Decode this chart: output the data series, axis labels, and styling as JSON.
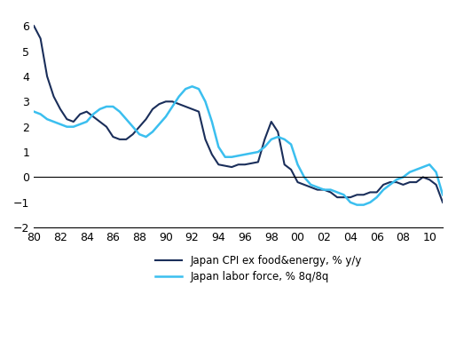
{
  "title": "",
  "xlabel": "",
  "ylabel": "",
  "xlim": [
    1980,
    2011
  ],
  "ylim": [
    -2,
    6.5
  ],
  "yticks": [
    -2,
    -1,
    0,
    1,
    2,
    3,
    4,
    5,
    6
  ],
  "xtick_labels": [
    "80",
    "82",
    "84",
    "86",
    "88",
    "90",
    "92",
    "94",
    "96",
    "98",
    "00",
    "02",
    "04",
    "06",
    "08",
    "10"
  ],
  "cpi_color": "#1a2e5a",
  "labor_color": "#3bbfef",
  "legend_cpi": "Japan CPI ex food&energy, % y/y",
  "legend_labor": "Japan labor force, % 8q/8q",
  "background_color": "#ffffff",
  "cpi_x": [
    1980,
    1980.5,
    1981,
    1981.5,
    1982,
    1982.5,
    1983,
    1983.5,
    1984,
    1984.5,
    1985,
    1985.5,
    1986,
    1986.5,
    1987,
    1987.5,
    1988,
    1988.5,
    1989,
    1989.5,
    1990,
    1990.5,
    1991,
    1991.5,
    1992,
    1992.5,
    1993,
    1993.5,
    1994,
    1994.5,
    1995,
    1995.5,
    1996,
    1996.5,
    1997,
    1997.5,
    1998,
    1998.5,
    1999,
    1999.5,
    2000,
    2000.5,
    2001,
    2001.5,
    2002,
    2002.5,
    2003,
    2003.5,
    2004,
    2004.5,
    2005,
    2005.5,
    2006,
    2006.5,
    2007,
    2007.5,
    2008,
    2008.5,
    2009,
    2009.5,
    2010,
    2010.5,
    2011
  ],
  "cpi_y": [
    6.0,
    5.5,
    4.0,
    3.2,
    2.7,
    2.3,
    2.2,
    2.5,
    2.6,
    2.4,
    2.2,
    2.0,
    1.6,
    1.5,
    1.5,
    1.7,
    2.0,
    2.3,
    2.7,
    2.9,
    3.0,
    3.0,
    2.9,
    2.8,
    2.7,
    2.6,
    1.5,
    0.9,
    0.5,
    0.45,
    0.4,
    0.5,
    0.5,
    0.55,
    0.6,
    1.5,
    2.2,
    1.8,
    0.5,
    0.3,
    -0.2,
    -0.3,
    -0.4,
    -0.5,
    -0.5,
    -0.6,
    -0.8,
    -0.8,
    -0.8,
    -0.7,
    -0.7,
    -0.6,
    -0.6,
    -0.3,
    -0.2,
    -0.2,
    -0.3,
    -0.2,
    -0.2,
    0.0,
    -0.1,
    -0.3,
    -1.0
  ],
  "labor_x": [
    1980,
    1980.5,
    1981,
    1981.5,
    1982,
    1982.5,
    1983,
    1983.5,
    1984,
    1984.5,
    1985,
    1985.5,
    1986,
    1986.5,
    1987,
    1987.5,
    1988,
    1988.5,
    1989,
    1989.5,
    1990,
    1990.5,
    1991,
    1991.5,
    1992,
    1992.5,
    1993,
    1993.5,
    1994,
    1994.5,
    1995,
    1995.5,
    1996,
    1996.5,
    1997,
    1997.5,
    1998,
    1998.5,
    1999,
    1999.5,
    2000,
    2000.5,
    2001,
    2001.5,
    2002,
    2002.5,
    2003,
    2003.5,
    2004,
    2004.5,
    2005,
    2005.5,
    2006,
    2006.5,
    2007,
    2007.5,
    2008,
    2008.5,
    2009,
    2009.5,
    2010,
    2010.5,
    2011
  ],
  "labor_y": [
    2.6,
    2.5,
    2.3,
    2.2,
    2.1,
    2.0,
    2.0,
    2.1,
    2.2,
    2.5,
    2.7,
    2.8,
    2.8,
    2.6,
    2.3,
    2.0,
    1.7,
    1.6,
    1.8,
    2.1,
    2.4,
    2.8,
    3.2,
    3.5,
    3.6,
    3.5,
    3.0,
    2.2,
    1.2,
    0.8,
    0.8,
    0.85,
    0.9,
    0.95,
    1.0,
    1.2,
    1.5,
    1.6,
    1.5,
    1.3,
    0.5,
    0.0,
    -0.3,
    -0.4,
    -0.5,
    -0.5,
    -0.6,
    -0.7,
    -1.0,
    -1.1,
    -1.1,
    -1.0,
    -0.8,
    -0.5,
    -0.3,
    -0.1,
    0.0,
    0.2,
    0.3,
    0.4,
    0.5,
    0.2,
    -0.7
  ]
}
